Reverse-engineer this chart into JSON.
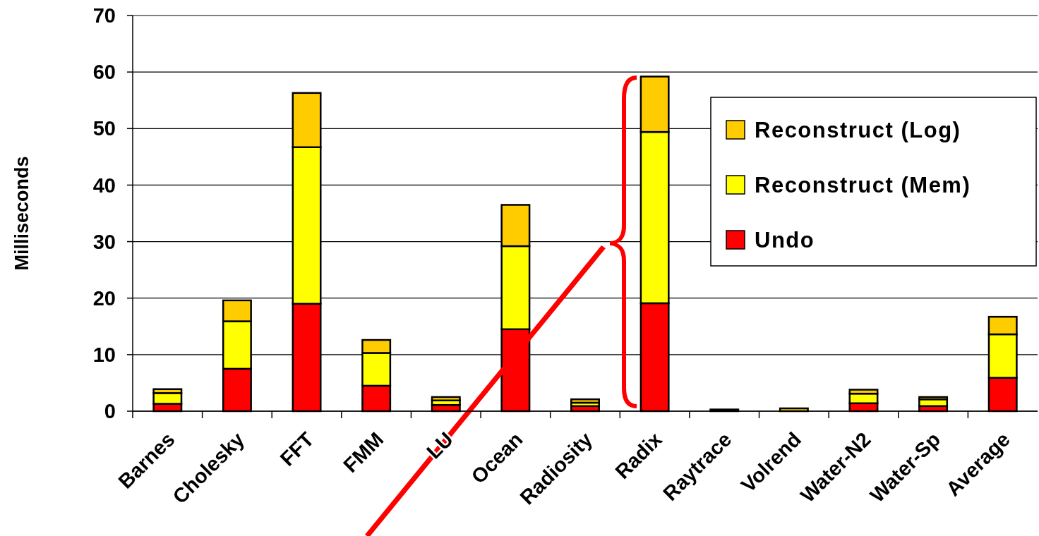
{
  "chart_data": {
    "type": "bar",
    "stacked": true,
    "ylabel": "Milliseconds",
    "categories": [
      "Barnes",
      "Cholesky",
      "FFT",
      "FMM",
      "LU",
      "Ocean",
      "Radiosity",
      "Radix",
      "Raytrace",
      "Volrend",
      "Water-N2",
      "Water-Sp",
      "Average"
    ],
    "series": [
      {
        "name": "Undo",
        "color": "#ff0000",
        "values": [
          1.3,
          7.5,
          19.0,
          4.5,
          1.1,
          14.5,
          0.9,
          19.1,
          null,
          null,
          1.4,
          0.9,
          5.9
        ]
      },
      {
        "name": "Reconstruct (Mem)",
        "color": "#ffff00",
        "values": [
          1.9,
          8.4,
          27.7,
          5.8,
          0.8,
          14.7,
          0.6,
          30.3,
          null,
          null,
          1.7,
          1.2,
          7.7
        ]
      },
      {
        "name": "Reconstruct (Log)",
        "color": "#ffcc00",
        "values": [
          0.7,
          3.7,
          9.6,
          2.3,
          0.6,
          7.3,
          0.6,
          9.8,
          0.3,
          0.5,
          0.7,
          0.4,
          3.1
        ]
      }
    ],
    "ylim": [
      0,
      70
    ],
    "yticks": [
      0,
      10,
      20,
      30,
      40,
      50,
      60,
      70
    ],
    "grid": "y",
    "legend": "right"
  }
}
